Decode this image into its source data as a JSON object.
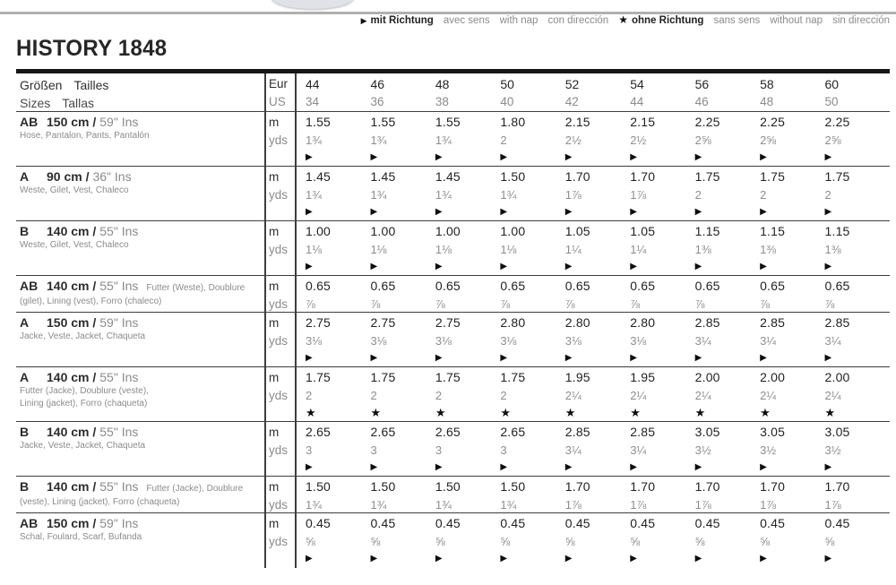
{
  "page": {
    "title": "HISTORY 1848"
  },
  "legend": {
    "items": [
      {
        "symbol": "▶",
        "label": "mit Richtung",
        "emphasis": true
      },
      {
        "symbol": "",
        "label": "avec sens",
        "emphasis": false
      },
      {
        "symbol": "",
        "label": "with nap",
        "emphasis": false
      },
      {
        "symbol": "",
        "label": "con dirección",
        "emphasis": false
      },
      {
        "symbol": "★",
        "label": "ohne Richtung",
        "emphasis": true
      },
      {
        "symbol": "",
        "label": "sans sens",
        "emphasis": false
      },
      {
        "symbol": "",
        "label": "without nap",
        "emphasis": false
      },
      {
        "symbol": "",
        "label": "sin dirección",
        "emphasis": false
      }
    ]
  },
  "table": {
    "header": {
      "row1_word1": "Größen",
      "row1_word2": "Tailles",
      "row2_word1": "Sizes",
      "row2_word2": "Tallas",
      "unit_top": "Eur",
      "unit_bottom": "US",
      "sizes_eur": [
        "44",
        "46",
        "48",
        "50",
        "52",
        "54",
        "56",
        "58",
        "60"
      ],
      "sizes_us": [
        "34",
        "36",
        "38",
        "40",
        "42",
        "44",
        "46",
        "48",
        "50"
      ]
    },
    "units": {
      "metric": "m",
      "imperial": "yds"
    },
    "rows": [
      {
        "views": "AB",
        "fabric": "150 cm /",
        "width_ins": "59\" Ins",
        "inline_note": "",
        "notes": [
          "Hose, Pantalon, Pants, Pantalón"
        ],
        "m": [
          "1.55",
          "1.55",
          "1.55",
          "1.80",
          "2.15",
          "2.15",
          "2.25",
          "2.25",
          "2.25"
        ],
        "yds": [
          "1¾",
          "1¾",
          "1¾",
          "2",
          "2½",
          "2½",
          "2⅝",
          "2⅝",
          "2⅝"
        ],
        "symbol": "▶"
      },
      {
        "views": "A",
        "fabric": "90 cm /",
        "width_ins": "36\" Ins",
        "inline_note": "",
        "notes": [
          "Weste, Gilet, Vest, Chaleco"
        ],
        "m": [
          "1.45",
          "1.45",
          "1.45",
          "1.50",
          "1.70",
          "1.70",
          "1.75",
          "1.75",
          "1.75"
        ],
        "yds": [
          "1¾",
          "1¾",
          "1¾",
          "1¾",
          "1⅞",
          "1⅞",
          "2",
          "2",
          "2"
        ],
        "symbol": "▶"
      },
      {
        "views": "B",
        "fabric": "140 cm /",
        "width_ins": "55\" Ins",
        "inline_note": "",
        "notes": [
          "Weste, Gilet, Vest, Chaleco"
        ],
        "m": [
          "1.00",
          "1.00",
          "1.00",
          "1.00",
          "1.05",
          "1.05",
          "1.15",
          "1.15",
          "1.15"
        ],
        "yds": [
          "1⅛",
          "1⅛",
          "1⅛",
          "1⅛",
          "1¼",
          "1¼",
          "1⅜",
          "1⅜",
          "1⅜"
        ],
        "symbol": "▶"
      },
      {
        "views": "AB",
        "fabric": "140 cm /",
        "width_ins": "55\" Ins",
        "inline_note": "Futter (Weste), Doublure",
        "notes": [
          "(gilet), Lining (vest), Forro (chaleco)"
        ],
        "m": [
          "0.65",
          "0.65",
          "0.65",
          "0.65",
          "0.65",
          "0.65",
          "0.65",
          "0.65",
          "0.65"
        ],
        "yds": [
          "⅞",
          "⅞",
          "⅞",
          "⅞",
          "⅞",
          "⅞",
          "⅞",
          "⅞",
          "⅞"
        ],
        "symbol": ""
      },
      {
        "views": "A",
        "fabric": "150 cm /",
        "width_ins": "59\" Ins",
        "inline_note": "",
        "notes": [
          "Jacke, Veste, Jacket, Chaqueta"
        ],
        "m": [
          "2.75",
          "2.75",
          "2.75",
          "2.80",
          "2.80",
          "2.80",
          "2.85",
          "2.85",
          "2.85"
        ],
        "yds": [
          "3⅛",
          "3⅛",
          "3⅛",
          "3⅛",
          "3⅛",
          "3⅛",
          "3¼",
          "3¼",
          "3¼"
        ],
        "symbol": "▶"
      },
      {
        "views": "A",
        "fabric": "140 cm /",
        "width_ins": "55\" Ins",
        "inline_note": "",
        "notes": [
          "Futter (Jacke), Doublure (veste),",
          "Lining (jacket), Forro (chaqueta)"
        ],
        "m": [
          "1.75",
          "1.75",
          "1.75",
          "1.75",
          "1.95",
          "1.95",
          "2.00",
          "2.00",
          "2.00"
        ],
        "yds": [
          "2",
          "2",
          "2",
          "2",
          "2¼",
          "2¼",
          "2¼",
          "2¼",
          "2¼"
        ],
        "symbol": "★"
      },
      {
        "views": "B",
        "fabric": "140 cm /",
        "width_ins": "55\" Ins",
        "inline_note": "",
        "notes": [
          "Jacke, Veste, Jacket, Chaqueta"
        ],
        "m": [
          "2.65",
          "2.65",
          "2.65",
          "2.65",
          "2.85",
          "2.85",
          "3.05",
          "3.05",
          "3.05"
        ],
        "yds": [
          "3",
          "3",
          "3",
          "3",
          "3¼",
          "3¼",
          "3½",
          "3½",
          "3½"
        ],
        "symbol": "▶"
      },
      {
        "views": "B",
        "fabric": "140 cm /",
        "width_ins": "55\" Ins",
        "inline_note": "Futter (Jacke), Doublure",
        "notes": [
          "(veste), Lining (jacket), Forro (chaqueta)"
        ],
        "m": [
          "1.50",
          "1.50",
          "1.50",
          "1.50",
          "1.70",
          "1.70",
          "1.70",
          "1.70",
          "1.70"
        ],
        "yds": [
          "1¾",
          "1¾",
          "1¾",
          "1¾",
          "1⅞",
          "1⅞",
          "1⅞",
          "1⅞",
          "1⅞"
        ],
        "symbol": ""
      },
      {
        "views": "AB",
        "fabric": "150 cm /",
        "width_ins": "59\" Ins",
        "inline_note": "",
        "notes": [
          "Schal, Foulard, Scarf, Bufanda"
        ],
        "m": [
          "0.45",
          "0.45",
          "0.45",
          "0.45",
          "0.45",
          "0.45",
          "0.45",
          "0.45",
          "0.45"
        ],
        "yds": [
          "⅝",
          "⅝",
          "⅝",
          "⅝",
          "⅝",
          "⅝",
          "⅝",
          "⅝",
          "⅝"
        ],
        "symbol": "▶"
      }
    ]
  },
  "colors": {
    "text_dark": "#222222",
    "text_gray": "#8b8b8b",
    "rule_thin": "#3d3d3d",
    "rule_thick": "#171717",
    "top_rule_gray": "#b0b0b0"
  }
}
